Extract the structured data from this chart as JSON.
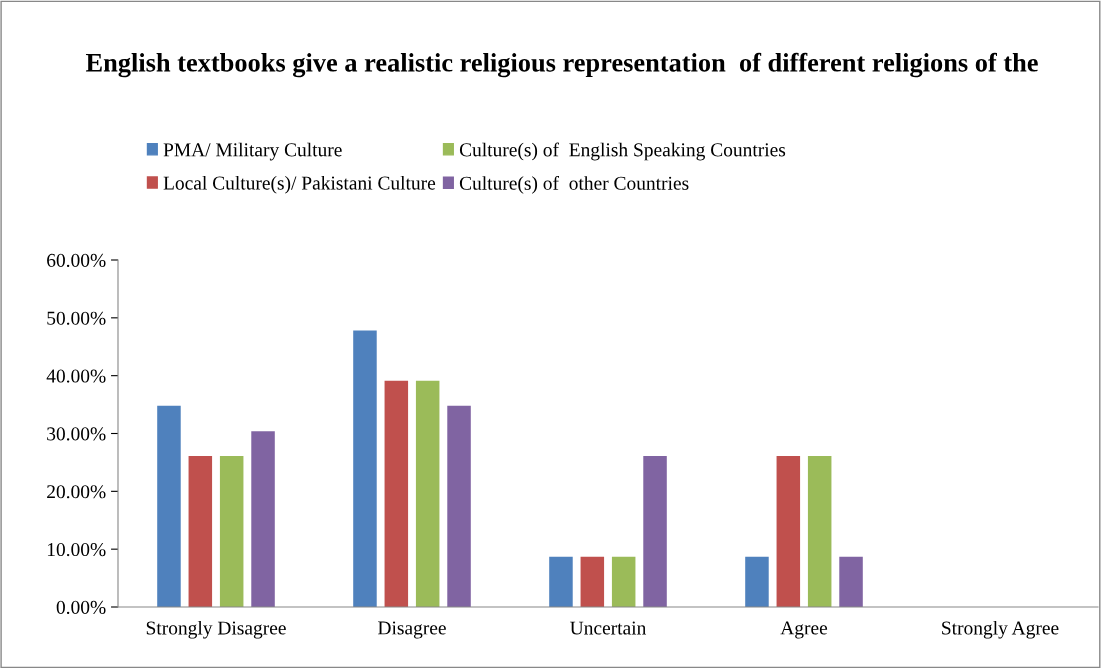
{
  "chart_data": {
    "type": "bar",
    "title": "English textbooks give a realistic religious representation  of different religions of the",
    "categories": [
      "Strongly Disagree",
      "Disagree",
      "Uncertain",
      "Agree",
      "Strongly Agree"
    ],
    "series": [
      {
        "name": "PMA/ Military Culture",
        "color": "#4f81bd",
        "values": [
          34.8,
          47.8,
          8.7,
          8.7,
          0
        ]
      },
      {
        "name": "Local Culture(s)/ Pakistani Culture",
        "color": "#c0504d",
        "values": [
          26.1,
          39.1,
          8.7,
          26.1,
          0
        ]
      },
      {
        "name": "Culture(s) of  English Speaking Countries",
        "color": "#9bbb59",
        "values": [
          26.1,
          39.1,
          8.7,
          26.1,
          0
        ]
      },
      {
        "name": "Culture(s) of  other Countries",
        "color": "#8064a2",
        "values": [
          30.4,
          34.8,
          26.1,
          8.7,
          0
        ]
      }
    ],
    "ylim": [
      0,
      60
    ],
    "yticks": [
      {
        "value": 0,
        "label": "0.00%"
      },
      {
        "value": 10,
        "label": "10.00%"
      },
      {
        "value": 20,
        "label": "20.00%"
      },
      {
        "value": 30,
        "label": "30.00%"
      },
      {
        "value": 40,
        "label": "40.00%"
      },
      {
        "value": 50,
        "label": "50.00%"
      },
      {
        "value": 60,
        "label": "60.00%"
      }
    ],
    "grid": false,
    "legend": "top"
  }
}
